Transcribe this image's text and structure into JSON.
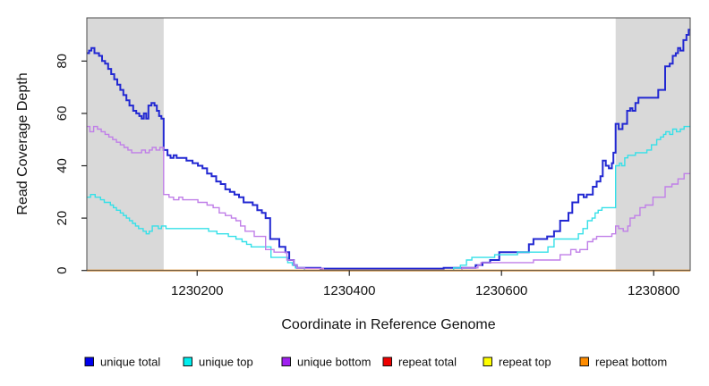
{
  "figure": {
    "background": "#ffffff"
  },
  "chart_data": {
    "type": "line",
    "step": true,
    "title": "",
    "xlabel": "Coordinate in Reference Genome",
    "ylabel": "Read Coverage Depth",
    "xlim": [
      1230055,
      1230848
    ],
    "ylim": [
      0,
      96.5
    ],
    "xticks": [
      1230200,
      1230400,
      1230600,
      1230800
    ],
    "yticks": [
      0,
      20,
      40,
      60,
      80
    ],
    "grid": false,
    "legend_position": "bottom",
    "shaded_regions": [
      {
        "x0": 1230055,
        "x1": 1230156,
        "color": "#d9d9d9"
      },
      {
        "x0": 1230750,
        "x1": 1230848,
        "color": "#d9d9d9"
      }
    ],
    "series": [
      {
        "name": "unique total",
        "color": "#0000EE",
        "line_color": "#2228d2",
        "line_width": 2,
        "points": [
          [
            1230055,
            83
          ],
          [
            1230058,
            84
          ],
          [
            1230061,
            85
          ],
          [
            1230065,
            83
          ],
          [
            1230071,
            82
          ],
          [
            1230075,
            80
          ],
          [
            1230079,
            79
          ],
          [
            1230083,
            77
          ],
          [
            1230087,
            75
          ],
          [
            1230091,
            73
          ],
          [
            1230095,
            71
          ],
          [
            1230099,
            69
          ],
          [
            1230103,
            67
          ],
          [
            1230107,
            65
          ],
          [
            1230111,
            63
          ],
          [
            1230116,
            61
          ],
          [
            1230120,
            60
          ],
          [
            1230124,
            59
          ],
          [
            1230127,
            58
          ],
          [
            1230130,
            60
          ],
          [
            1230133,
            58
          ],
          [
            1230136,
            63
          ],
          [
            1230140,
            64
          ],
          [
            1230144,
            63
          ],
          [
            1230147,
            61
          ],
          [
            1230150,
            59
          ],
          [
            1230153,
            58
          ],
          [
            1230156,
            46
          ],
          [
            1230161,
            44
          ],
          [
            1230165,
            43
          ],
          [
            1230169,
            44
          ],
          [
            1230173,
            43
          ],
          [
            1230186,
            42
          ],
          [
            1230194,
            41
          ],
          [
            1230201,
            40
          ],
          [
            1230207,
            39
          ],
          [
            1230213,
            37
          ],
          [
            1230219,
            36
          ],
          [
            1230225,
            34
          ],
          [
            1230231,
            33
          ],
          [
            1230237,
            31
          ],
          [
            1230243,
            30
          ],
          [
            1230249,
            29
          ],
          [
            1230255,
            28
          ],
          [
            1230261,
            26
          ],
          [
            1230273,
            25
          ],
          [
            1230279,
            23
          ],
          [
            1230285,
            22
          ],
          [
            1230290,
            20
          ],
          [
            1230296,
            12
          ],
          [
            1230308,
            9
          ],
          [
            1230316,
            7
          ],
          [
            1230321,
            4
          ],
          [
            1230327,
            2
          ],
          [
            1230331,
            1
          ],
          [
            1230362,
            0.7
          ],
          [
            1230524,
            1
          ],
          [
            1230566,
            2
          ],
          [
            1230575,
            3
          ],
          [
            1230585,
            4
          ],
          [
            1230597,
            7
          ],
          [
            1230636,
            10
          ],
          [
            1230642,
            12
          ],
          [
            1230660,
            13
          ],
          [
            1230669,
            15
          ],
          [
            1230677,
            19
          ],
          [
            1230688,
            22
          ],
          [
            1230693,
            26
          ],
          [
            1230701,
            29
          ],
          [
            1230708,
            28
          ],
          [
            1230712,
            29
          ],
          [
            1230720,
            32
          ],
          [
            1230725,
            34
          ],
          [
            1230730,
            36
          ],
          [
            1230733,
            42
          ],
          [
            1230737,
            40
          ],
          [
            1230741,
            39
          ],
          [
            1230745,
            41
          ],
          [
            1230747,
            45
          ],
          [
            1230750,
            56
          ],
          [
            1230754,
            54
          ],
          [
            1230759,
            56
          ],
          [
            1230765,
            61
          ],
          [
            1230769,
            62
          ],
          [
            1230772,
            61
          ],
          [
            1230776,
            64
          ],
          [
            1230780,
            66
          ],
          [
            1230806,
            69
          ],
          [
            1230815,
            78
          ],
          [
            1230821,
            79
          ],
          [
            1230825,
            82
          ],
          [
            1230829,
            83
          ],
          [
            1230832,
            85
          ],
          [
            1230835,
            84
          ],
          [
            1230839,
            88
          ],
          [
            1230843,
            90
          ],
          [
            1230846,
            92
          ]
        ]
      },
      {
        "name": "unique top",
        "color": "#00EEEE",
        "line_color": "#35e0e8",
        "line_width": 1.4,
        "points": [
          [
            1230055,
            28
          ],
          [
            1230060,
            29
          ],
          [
            1230066,
            28
          ],
          [
            1230073,
            27
          ],
          [
            1230078,
            26
          ],
          [
            1230086,
            25
          ],
          [
            1230090,
            24
          ],
          [
            1230094,
            23
          ],
          [
            1230099,
            22
          ],
          [
            1230103,
            21
          ],
          [
            1230107,
            20
          ],
          [
            1230111,
            19
          ],
          [
            1230115,
            18
          ],
          [
            1230119,
            17
          ],
          [
            1230123,
            16
          ],
          [
            1230129,
            15
          ],
          [
            1230133,
            14
          ],
          [
            1230137,
            15
          ],
          [
            1230141,
            17
          ],
          [
            1230149,
            16
          ],
          [
            1230153,
            17
          ],
          [
            1230159,
            16
          ],
          [
            1230215,
            15
          ],
          [
            1230226,
            14
          ],
          [
            1230241,
            13
          ],
          [
            1230251,
            12
          ],
          [
            1230259,
            11
          ],
          [
            1230265,
            10
          ],
          [
            1230271,
            9
          ],
          [
            1230297,
            5
          ],
          [
            1230319,
            3
          ],
          [
            1230325,
            2
          ],
          [
            1230329,
            1
          ],
          [
            1230341,
            0
          ],
          [
            1230537,
            1
          ],
          [
            1230546,
            2
          ],
          [
            1230554,
            4
          ],
          [
            1230561,
            5
          ],
          [
            1230591,
            6
          ],
          [
            1230621,
            7
          ],
          [
            1230661,
            9
          ],
          [
            1230669,
            12
          ],
          [
            1230701,
            14
          ],
          [
            1230707,
            16
          ],
          [
            1230713,
            19
          ],
          [
            1230719,
            20
          ],
          [
            1230723,
            22
          ],
          [
            1230727,
            23
          ],
          [
            1230732,
            24
          ],
          [
            1230750,
            40
          ],
          [
            1230755,
            41
          ],
          [
            1230758,
            40
          ],
          [
            1230762,
            43
          ],
          [
            1230766,
            44
          ],
          [
            1230776,
            45
          ],
          [
            1230791,
            46
          ],
          [
            1230797,
            48
          ],
          [
            1230804,
            50
          ],
          [
            1230809,
            51
          ],
          [
            1230813,
            52
          ],
          [
            1230816,
            53
          ],
          [
            1230821,
            52
          ],
          [
            1230825,
            54
          ],
          [
            1230830,
            53
          ],
          [
            1230835,
            54
          ],
          [
            1230840,
            55
          ]
        ]
      },
      {
        "name": "unique bottom",
        "color": "#A020F0",
        "line_color": "#c07fe8",
        "line_width": 1.4,
        "points": [
          [
            1230055,
            55
          ],
          [
            1230059,
            53
          ],
          [
            1230064,
            55
          ],
          [
            1230069,
            54
          ],
          [
            1230074,
            53
          ],
          [
            1230079,
            52
          ],
          [
            1230084,
            51
          ],
          [
            1230089,
            50
          ],
          [
            1230094,
            49
          ],
          [
            1230099,
            48
          ],
          [
            1230104,
            47
          ],
          [
            1230109,
            46
          ],
          [
            1230114,
            45
          ],
          [
            1230127,
            46
          ],
          [
            1230132,
            45
          ],
          [
            1230137,
            46
          ],
          [
            1230141,
            47
          ],
          [
            1230146,
            46
          ],
          [
            1230151,
            47
          ],
          [
            1230156,
            29
          ],
          [
            1230163,
            28
          ],
          [
            1230169,
            27
          ],
          [
            1230176,
            28
          ],
          [
            1230181,
            27
          ],
          [
            1230201,
            26
          ],
          [
            1230213,
            25
          ],
          [
            1230221,
            24
          ],
          [
            1230229,
            22
          ],
          [
            1230237,
            21
          ],
          [
            1230245,
            20
          ],
          [
            1230251,
            19
          ],
          [
            1230257,
            17
          ],
          [
            1230263,
            15
          ],
          [
            1230275,
            13
          ],
          [
            1230290,
            8
          ],
          [
            1230301,
            7
          ],
          [
            1230318,
            4
          ],
          [
            1230327,
            2
          ],
          [
            1230331,
            1
          ],
          [
            1230341,
            0.8
          ],
          [
            1230366,
            0
          ],
          [
            1230548,
            1
          ],
          [
            1230569,
            2
          ],
          [
            1230573,
            3
          ],
          [
            1230642,
            4
          ],
          [
            1230677,
            6
          ],
          [
            1230691,
            8
          ],
          [
            1230698,
            7
          ],
          [
            1230703,
            8
          ],
          [
            1230713,
            11
          ],
          [
            1230720,
            12
          ],
          [
            1230725,
            13
          ],
          [
            1230745,
            14
          ],
          [
            1230750,
            17
          ],
          [
            1230754,
            16
          ],
          [
            1230760,
            15
          ],
          [
            1230766,
            17
          ],
          [
            1230769,
            20
          ],
          [
            1230775,
            21
          ],
          [
            1230782,
            24
          ],
          [
            1230789,
            25
          ],
          [
            1230799,
            28
          ],
          [
            1230815,
            32
          ],
          [
            1230824,
            33
          ],
          [
            1230832,
            35
          ],
          [
            1230840,
            37
          ]
        ]
      },
      {
        "name": "repeat total",
        "color": "#EE0000",
        "line_color": "#e62222",
        "line_width": 1.4,
        "points": [
          [
            1230055,
            0
          ]
        ]
      },
      {
        "name": "repeat top",
        "color": "#FFFF00",
        "line_color": "#ffee00",
        "line_width": 1.4,
        "points": [
          [
            1230055,
            0
          ]
        ]
      },
      {
        "name": "repeat bottom",
        "color": "#FF8C00",
        "line_color": "#ff9110",
        "line_width": 1.8,
        "points": [
          [
            1230055,
            0
          ]
        ]
      }
    ]
  }
}
